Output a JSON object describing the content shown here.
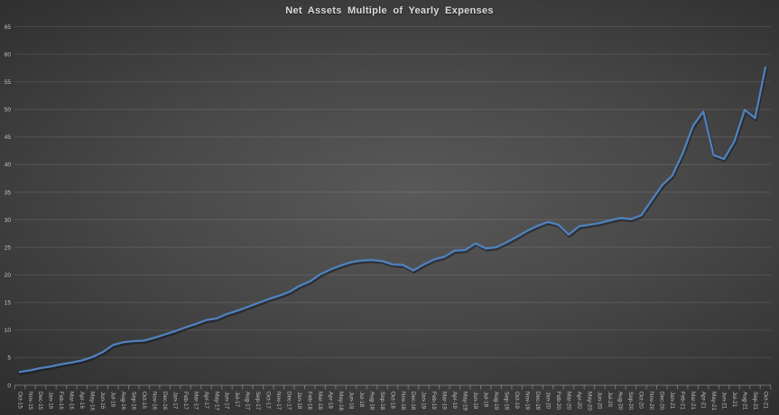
{
  "page": {
    "title": "Net Assets Multiple of Yearly Expenses"
  },
  "chart_data": {
    "type": "line",
    "title": "Net Assets Multiple of Yearly Expenses",
    "xlabel": "",
    "ylabel": "",
    "ylim": [
      0,
      65
    ],
    "ytick_step": 5,
    "yticks": [
      0,
      5,
      10,
      15,
      20,
      25,
      30,
      35,
      40,
      45,
      50,
      55,
      60,
      65
    ],
    "grid": true,
    "legend": false,
    "x_label_rotation": 90,
    "colors": {
      "line": "#4f81bd",
      "background_center": "#595959",
      "background_edge": "#232323",
      "gridline": "#5f5f5f",
      "text": "#c4c4c4",
      "title_text": "#dcdcdc"
    },
    "x": [
      "Oct-15",
      "Nov-15",
      "Dec-15",
      "Jan-16",
      "Feb-16",
      "Mar-16",
      "Apr-16",
      "May-16",
      "Jun-16",
      "Jul-16",
      "Aug-16",
      "Sep-16",
      "Oct-16",
      "Nov-16",
      "Dec-16",
      "Jan-17",
      "Feb-17",
      "Mar-17",
      "Apr-17",
      "May-17",
      "Jun-17",
      "Jul-17",
      "Aug-17",
      "Sep-17",
      "Oct-17",
      "Nov-17",
      "Dec-17",
      "Jan-18",
      "Feb-18",
      "Mar-18",
      "Apr-18",
      "May-18",
      "Jun-18",
      "Jul-18",
      "Aug-18",
      "Sep-18",
      "Oct-18",
      "Nov-18",
      "Dec-18",
      "Jan-19",
      "Feb-19",
      "Mar-19",
      "Apr-19",
      "May-19",
      "Jun-19",
      "Jul-19",
      "Aug-19",
      "Sep-19",
      "Oct-19",
      "Nov-19",
      "Dec-19",
      "Jan-20",
      "Feb-20",
      "Mar-20",
      "Apr-20",
      "May-20",
      "Jun-20",
      "Jul-20",
      "Aug-20",
      "Sep-20",
      "Oct-20",
      "Nov-20",
      "Dec-20",
      "Jan-21",
      "Feb-21",
      "Mar-21",
      "Apr-21",
      "May-21",
      "Jun-21",
      "Jul-21",
      "Aug-21",
      "Sep-21",
      "Oct-21"
    ],
    "series": [
      {
        "name": "Net Assets Multiple",
        "color": "#4f81bd",
        "values": [
          2.4,
          2.7,
          3.1,
          3.4,
          3.8,
          4.1,
          4.5,
          5.1,
          6.0,
          7.3,
          7.8,
          8.0,
          8.1,
          8.6,
          9.2,
          9.8,
          10.5,
          11.1,
          11.8,
          12.1,
          12.9,
          13.5,
          14.2,
          14.9,
          15.6,
          16.2,
          16.9,
          18.0,
          18.8,
          20.1,
          21.0,
          21.7,
          22.3,
          22.6,
          22.7,
          22.5,
          21.9,
          21.8,
          20.8,
          21.9,
          22.8,
          23.3,
          24.4,
          24.5,
          25.7,
          24.8,
          25.0,
          25.9,
          26.9,
          28.0,
          28.9,
          29.6,
          29.1,
          27.3,
          28.8,
          29.1,
          29.4,
          29.9,
          30.3,
          30.1,
          30.8,
          33.5,
          36.2,
          38.0,
          42.0,
          47.0,
          49.6,
          41.7,
          41.0,
          44.2,
          49.9,
          48.4,
          57.6
        ]
      }
    ]
  }
}
